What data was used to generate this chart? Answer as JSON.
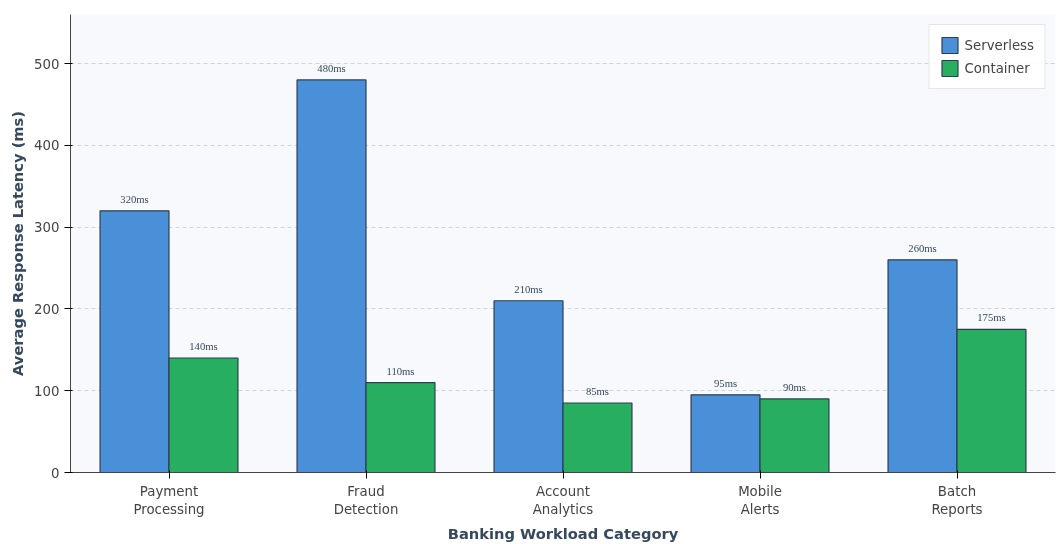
{
  "chart_data": {
    "type": "bar",
    "xlabel": "Banking Workload Category",
    "ylabel": "Average Response Latency (ms)",
    "categories": [
      "Payment\nProcessing",
      "Fraud\nDetection",
      "Account\nAnalytics",
      "Mobile\nAlerts",
      "Batch\nReports"
    ],
    "series": [
      {
        "name": "Serverless",
        "color": "#4a90d9",
        "values": [
          320,
          480,
          210,
          95,
          260
        ],
        "value_labels": [
          "320ms",
          "480ms",
          "210ms",
          "95ms",
          "260ms"
        ]
      },
      {
        "name": "Container",
        "color": "#27ae60",
        "values": [
          140,
          110,
          85,
          90,
          175
        ],
        "value_labels": [
          "140ms",
          "110ms",
          "85ms",
          "90ms",
          "175ms"
        ]
      }
    ],
    "ylim": [
      0,
      560
    ],
    "yticks": [
      0,
      100,
      200,
      300,
      400,
      500
    ],
    "grid": "y",
    "legend": "top right"
  }
}
